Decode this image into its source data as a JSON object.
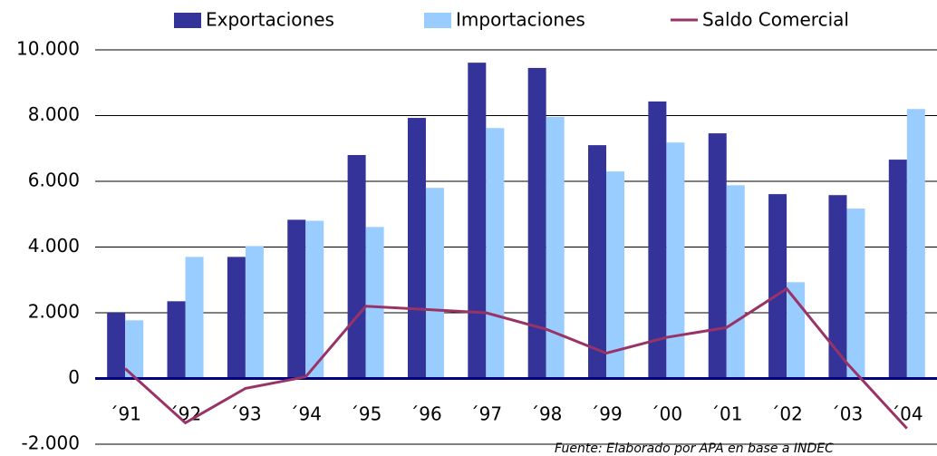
{
  "chart_data": {
    "type": "bar_line",
    "categories": [
      "´91",
      "´92",
      "´93",
      "´94",
      "´95",
      "´96",
      "´97",
      "´98",
      "´99",
      "´00",
      "´01",
      "´02",
      "´03",
      "´04"
    ],
    "series": [
      {
        "name": "Exportaciones",
        "color": "#333399",
        "kind": "bar",
        "values": [
          2000,
          2350,
          3700,
          4830,
          6800,
          7930,
          9610,
          9450,
          7100,
          8430,
          7460,
          5610,
          5580,
          6660
        ]
      },
      {
        "name": "Importaciones",
        "color": "#99ccff",
        "kind": "bar",
        "values": [
          1770,
          3700,
          4030,
          4800,
          4610,
          5800,
          7620,
          7960,
          6300,
          7180,
          5880,
          2930,
          5170,
          8200
        ]
      },
      {
        "name": "Saldo Comercial",
        "color": "#993366",
        "kind": "line",
        "values": [
          300,
          -1350,
          -300,
          50,
          2200,
          2100,
          2000,
          1500,
          770,
          1250,
          1550,
          2730,
          470,
          -1520
        ]
      }
    ],
    "ylim": [
      -2000,
      10000
    ],
    "yticks": [
      {
        "value": -2000,
        "label": "-2.000"
      },
      0,
      {
        "value": 2000,
        "label": "2.000"
      },
      {
        "value": 4000,
        "label": "4.000"
      },
      {
        "value": 6000,
        "label": "6.000"
      },
      {
        "value": 8000,
        "label": "8.000"
      },
      {
        "value": 10000,
        "label": "10.000"
      }
    ],
    "grid": true,
    "legend": "top",
    "source": "Fuente: Elaborado por APA en base a INDEC"
  }
}
